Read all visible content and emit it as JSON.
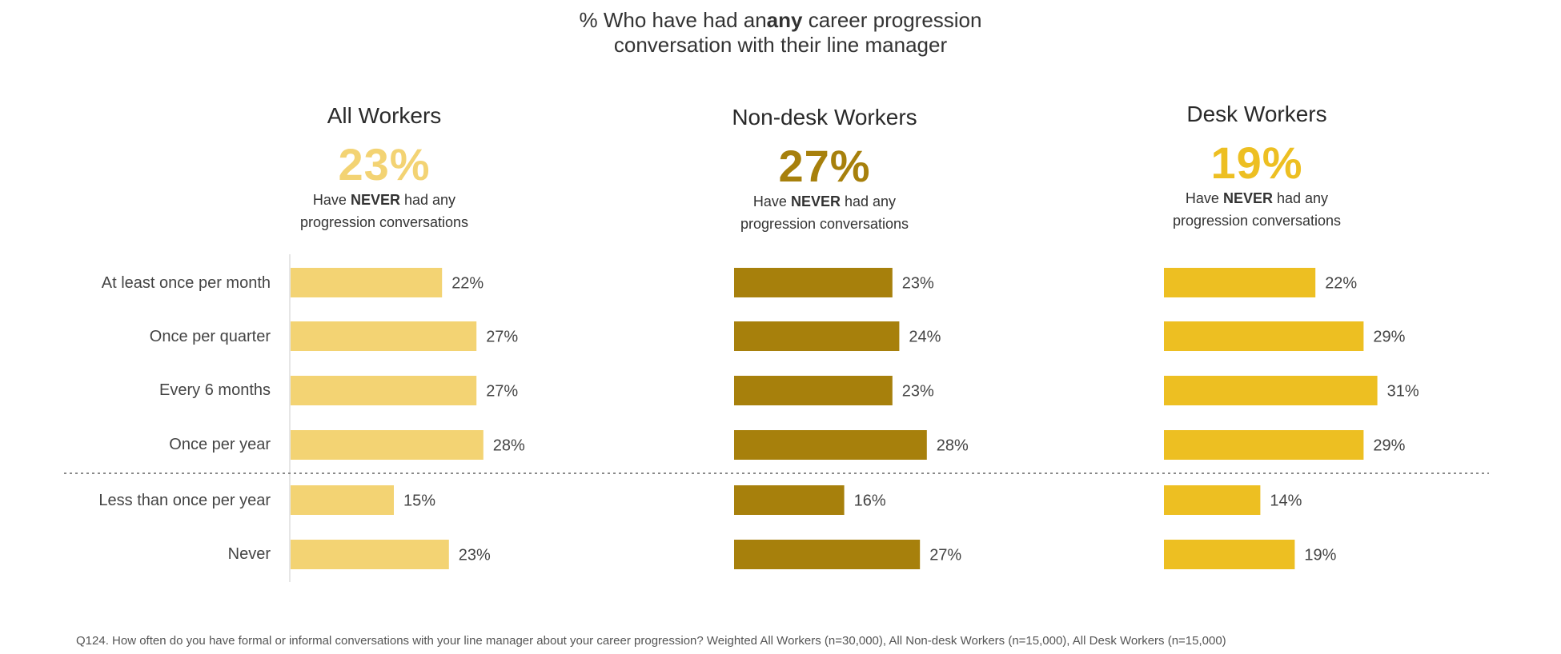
{
  "title": {
    "prefix": "% Who have had an",
    "emphasis": "any",
    "suffix": " career progression",
    "line2": "conversation with their line manager"
  },
  "chart_data": {
    "type": "bar",
    "orientation": "horizontal",
    "title": "% Who have had an any career progression conversation with their line manager",
    "categories": [
      "At least once per month",
      "Once per quarter",
      "Every 6 months",
      "Once per year",
      "Less than once per year",
      "Never"
    ],
    "divider_after_index": 3,
    "value_suffix": "%",
    "xlim": [
      0,
      35
    ],
    "series": [
      {
        "name": "All Workers",
        "values": [
          22,
          27,
          27,
          28,
          15,
          23
        ],
        "color": "#f3d373",
        "headline": "23%",
        "note_prefix": "Have",
        "note_emph": "NEVER",
        "note_suffix": "had any",
        "note_line2": "progression conversations"
      },
      {
        "name": "Non-desk Workers",
        "values": [
          23,
          24,
          23,
          28,
          16,
          27
        ],
        "color": "#a7800c",
        "headline": "27%",
        "note_prefix": "Have",
        "note_emph": "NEVER",
        "note_suffix": "had any",
        "note_line2": "progression conversations"
      },
      {
        "name": "Desk Workers",
        "values": [
          22,
          29,
          31,
          29,
          14,
          19
        ],
        "color": "#edbf22",
        "headline": "19%",
        "note_prefix": "Have",
        "note_emph": "NEVER",
        "note_suffix": "had any",
        "note_line2": "progression conversations"
      }
    ]
  },
  "footnote": "Q124. How often do you have formal or informal conversations with your line manager about your career progression? Weighted All Workers (n=30,000), All Non-desk Workers (n=15,000), All Desk Workers (n=15,000)"
}
